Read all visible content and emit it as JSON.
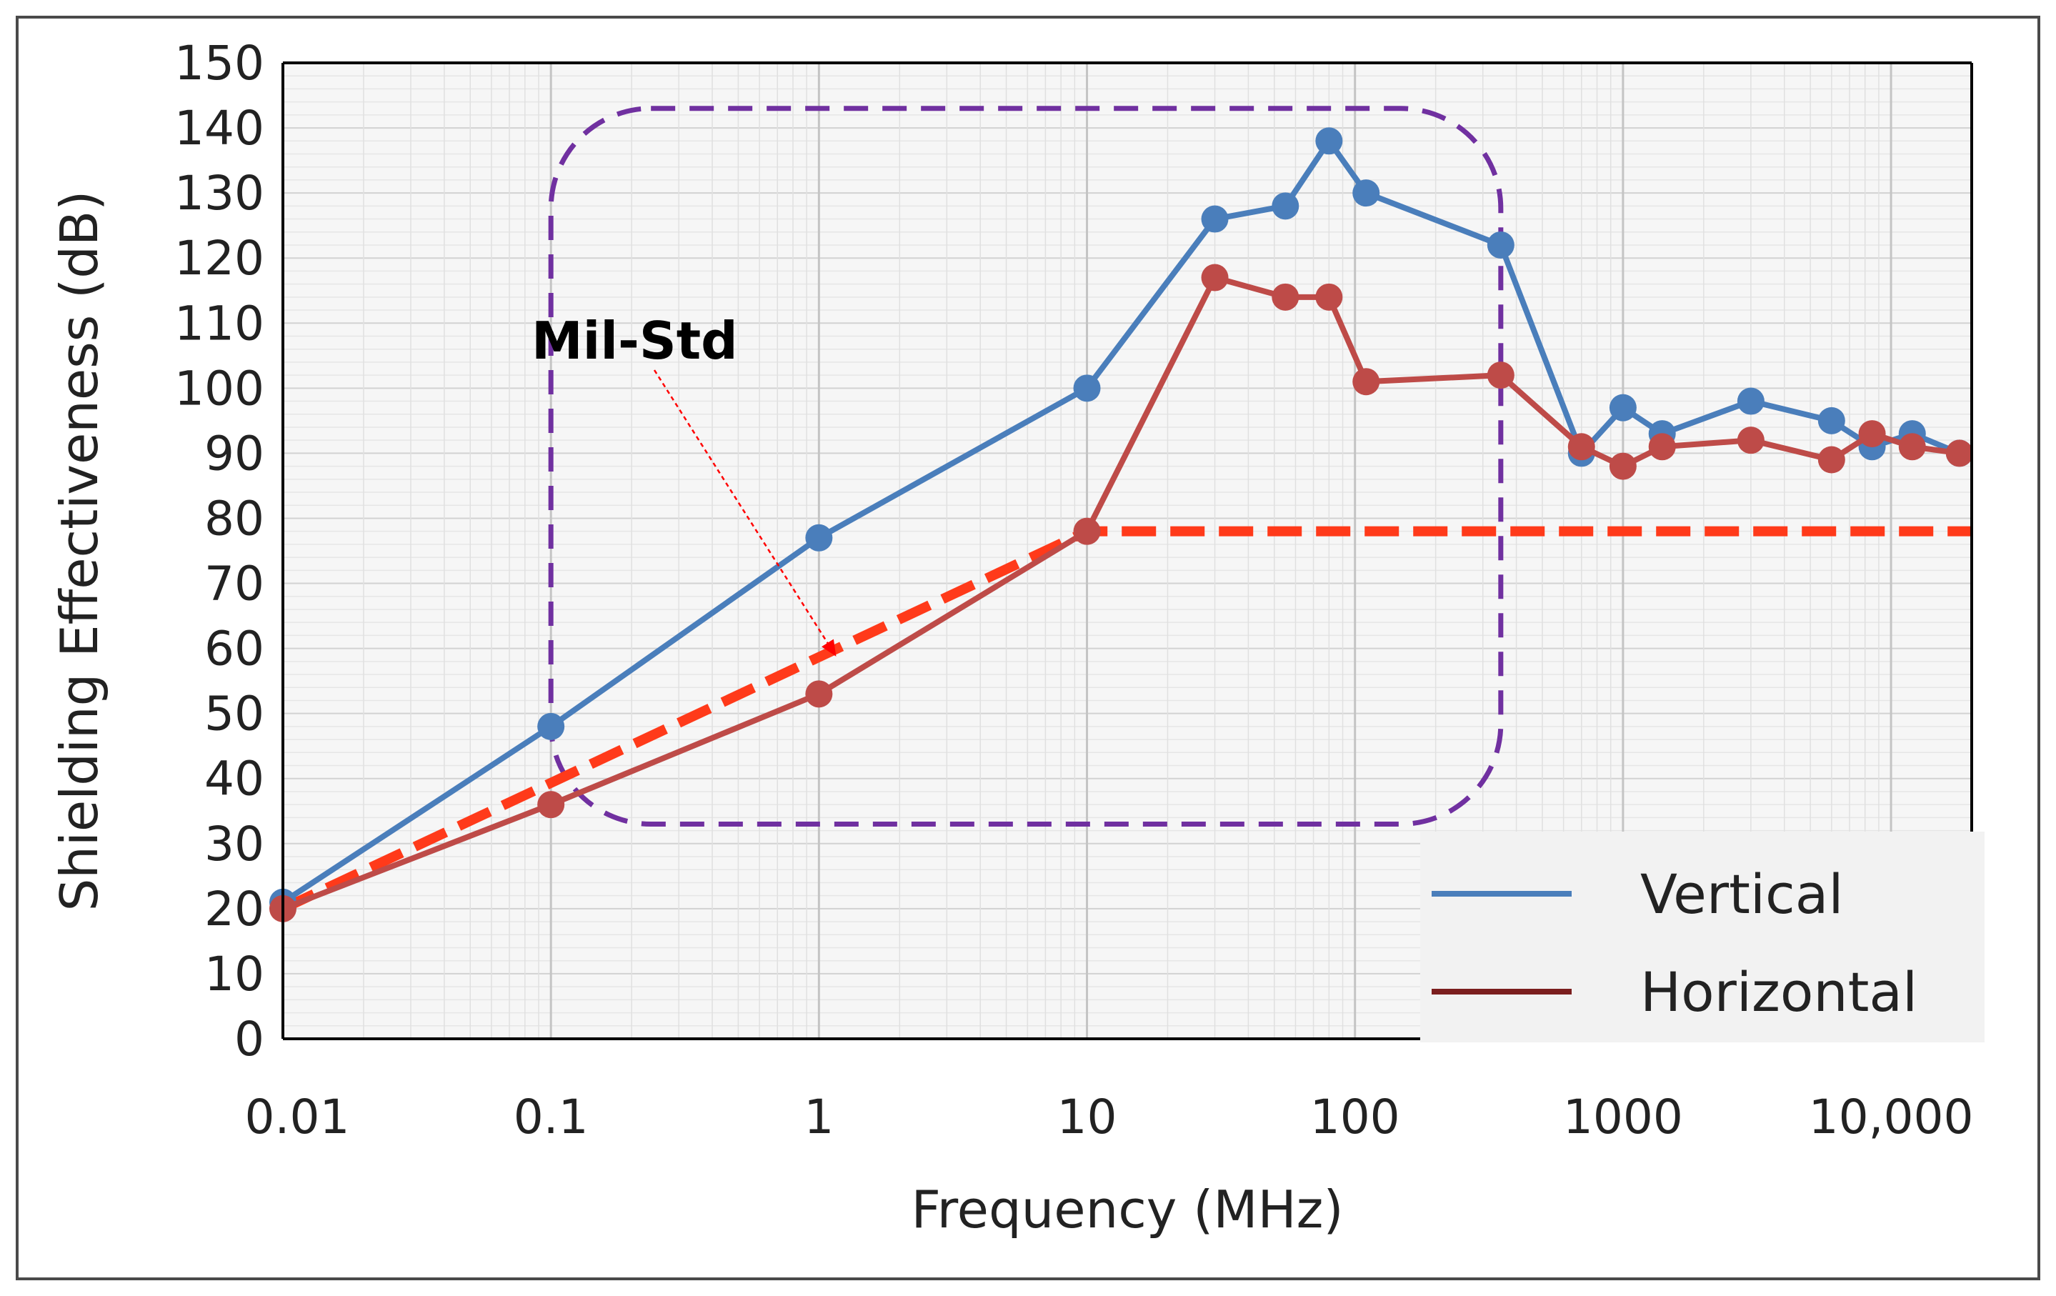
{
  "chart_data": {
    "type": "line",
    "xscale": "log",
    "xlabel": "Frequency (MHz)",
    "ylabel": "Shielding Effectiveness (dB)",
    "xlim": [
      0.01,
      20000
    ],
    "ylim": [
      0,
      150
    ],
    "yticks": [
      0,
      10,
      20,
      30,
      40,
      50,
      60,
      70,
      80,
      90,
      100,
      110,
      120,
      130,
      140,
      150
    ],
    "xticks": [
      {
        "value": 0.01,
        "label": "0.01"
      },
      {
        "value": 0.1,
        "label": "0.1"
      },
      {
        "value": 1,
        "label": "1"
      },
      {
        "value": 10,
        "label": "10"
      },
      {
        "value": 100,
        "label": "100"
      },
      {
        "value": 1000,
        "label": "1000"
      },
      {
        "value": 10000,
        "label": "10,000"
      }
    ],
    "grid": true,
    "legend_position": "bottom-right",
    "series": [
      {
        "name": "Vertical",
        "color": "#4a7ebb",
        "x": [
          0.01,
          0.1,
          1,
          10,
          30,
          55,
          80,
          110,
          350,
          700,
          1000,
          1400,
          3000,
          6000,
          8500,
          12000,
          18000
        ],
        "y": [
          21,
          48,
          77,
          100,
          126,
          128,
          138,
          130,
          122,
          90,
          97,
          93,
          98,
          95,
          91,
          93,
          90
        ]
      },
      {
        "name": "Horizontal",
        "color": "#be4b48",
        "legend_color": "#7b1e1e",
        "x": [
          0.01,
          0.1,
          1,
          10,
          30,
          55,
          80,
          110,
          350,
          700,
          1000,
          1400,
          3000,
          6000,
          8500,
          12000,
          18000
        ],
        "y": [
          20,
          36,
          53,
          78,
          117,
          114,
          114,
          101,
          102,
          91,
          88,
          91,
          92,
          89,
          93,
          91,
          90
        ]
      }
    ],
    "reference_line": {
      "name": "Mil-Std",
      "color": "#ff3a1a",
      "x": [
        0.01,
        10,
        20000
      ],
      "y": [
        20,
        78,
        78
      ]
    },
    "annotation": {
      "text": "Mil-Std",
      "arrow_target": {
        "x": 1.15,
        "y": 59
      }
    },
    "highlight_region": {
      "color": "#7030a0",
      "x_range": [
        0.1,
        350
      ],
      "y_range": [
        33,
        143
      ]
    }
  }
}
